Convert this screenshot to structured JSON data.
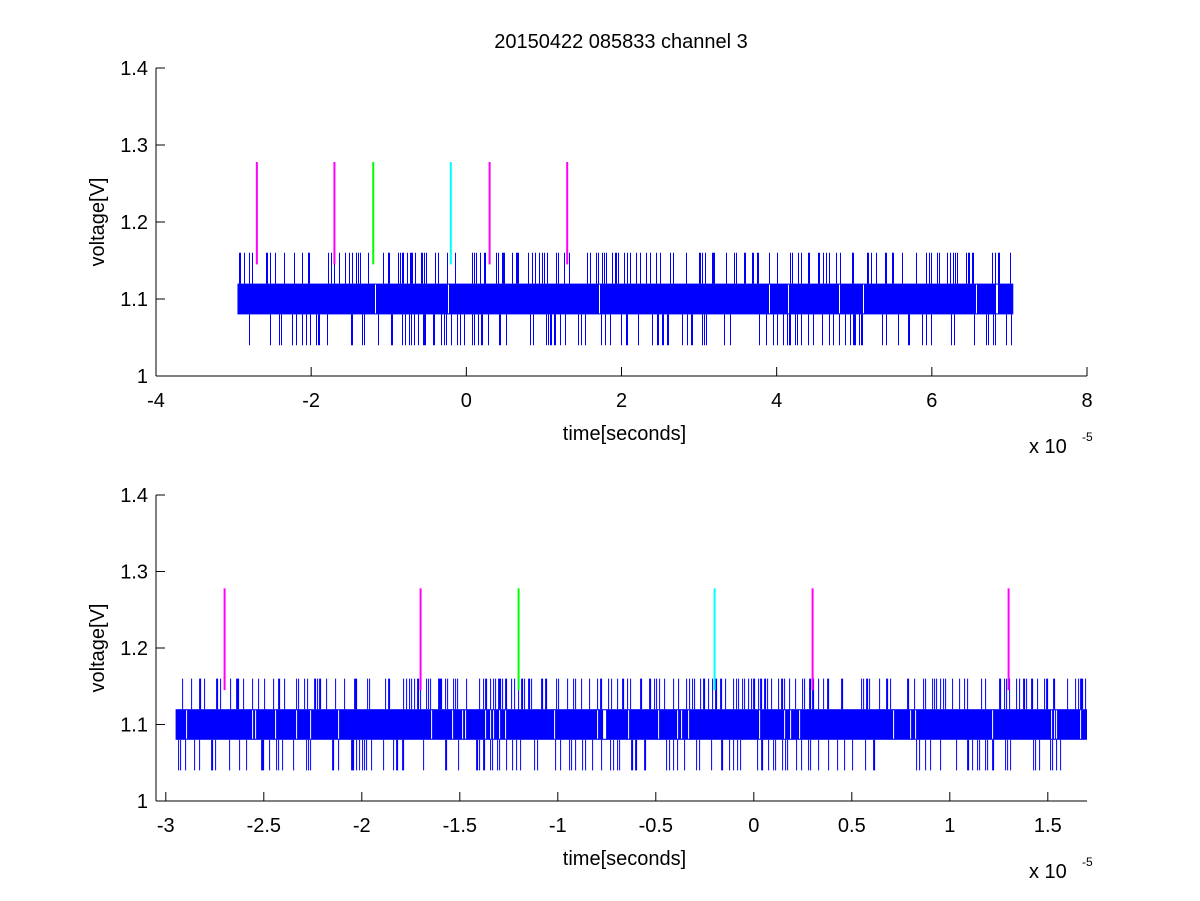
{
  "title": "20150422 085833 channel 3",
  "chart_data": [
    {
      "type": "line",
      "title": "20150422 085833 channel 3",
      "xlabel": "time[seconds]",
      "ylabel": "voltage[V]",
      "x_exponent_label": "x 10",
      "x_exponent": "-5",
      "xlim": [
        -4,
        8
      ],
      "ylim": [
        1,
        1.4
      ],
      "xticks": [
        -4,
        -2,
        0,
        2,
        4,
        6,
        8
      ],
      "xtick_labels": [
        "-4",
        "-2",
        "0",
        "2",
        "4",
        "6",
        "8"
      ],
      "yticks": [
        1,
        1.1,
        1.2,
        1.3,
        1.4
      ],
      "ytick_labels": [
        "1",
        "1.1",
        "1.2",
        "1.3",
        "1.4"
      ],
      "grid": false,
      "series": [
        {
          "color": "#0000ff",
          "x_range": [
            -2.95,
            7.05
          ],
          "base_band": [
            1.08,
            1.12
          ],
          "high_level": 1.16,
          "low_level": 1.04
        }
      ],
      "markers": [
        {
          "x": -2.7,
          "y_range": [
            1.145,
            1.278
          ],
          "color": "#ff00ff"
        },
        {
          "x": -1.7,
          "y_range": [
            1.145,
            1.278
          ],
          "color": "#ff00ff"
        },
        {
          "x": -1.2,
          "y_range": [
            1.145,
            1.278
          ],
          "color": "#00ff00"
        },
        {
          "x": -0.2,
          "y_range": [
            1.145,
            1.278
          ],
          "color": "#00ffff"
        },
        {
          "x": 0.3,
          "y_range": [
            1.145,
            1.278
          ],
          "color": "#ff00ff"
        },
        {
          "x": 1.3,
          "y_range": [
            1.145,
            1.278
          ],
          "color": "#ff00ff"
        }
      ]
    },
    {
      "type": "line",
      "title": "",
      "xlabel": "time[seconds]",
      "ylabel": "voltage[V]",
      "x_exponent_label": "x 10",
      "x_exponent": "-5",
      "xlim": [
        -3.05,
        1.7
      ],
      "ylim": [
        1,
        1.4
      ],
      "xticks": [
        -3,
        -2.5,
        -2,
        -1.5,
        -1,
        -0.5,
        0,
        0.5,
        1,
        1.5
      ],
      "xtick_labels": [
        "-3",
        "-2.5",
        "-2",
        "-1.5",
        "-1",
        "-0.5",
        "0",
        "0.5",
        "1",
        "1.5"
      ],
      "yticks": [
        1,
        1.1,
        1.2,
        1.3,
        1.4
      ],
      "ytick_labels": [
        "1",
        "1.1",
        "1.2",
        "1.3",
        "1.4"
      ],
      "grid": false,
      "series": [
        {
          "color": "#0000ff",
          "x_range": [
            -2.95,
            1.7
          ],
          "base_band": [
            1.08,
            1.12
          ],
          "high_level": 1.16,
          "low_level": 1.04
        }
      ],
      "markers": [
        {
          "x": -2.7,
          "y_range": [
            1.145,
            1.278
          ],
          "color": "#ff00ff"
        },
        {
          "x": -1.7,
          "y_range": [
            1.145,
            1.278
          ],
          "color": "#ff00ff"
        },
        {
          "x": -1.2,
          "y_range": [
            1.145,
            1.278
          ],
          "color": "#00ff00"
        },
        {
          "x": -0.2,
          "y_range": [
            1.145,
            1.278
          ],
          "color": "#00ffff"
        },
        {
          "x": 0.3,
          "y_range": [
            1.145,
            1.278
          ],
          "color": "#ff00ff"
        },
        {
          "x": 1.3,
          "y_range": [
            1.145,
            1.278
          ],
          "color": "#ff00ff"
        }
      ]
    }
  ]
}
